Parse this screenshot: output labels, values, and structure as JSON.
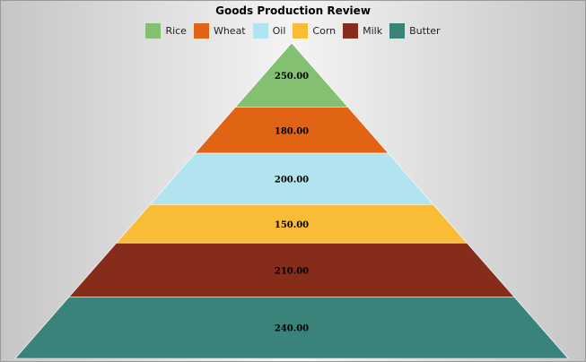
{
  "chart_data": {
    "type": "pyramid",
    "title": "Goods Production Review",
    "legend_position": "top",
    "series": [
      {
        "name": "Rice",
        "value": 250,
        "label": "250.00",
        "color": "#84c072"
      },
      {
        "name": "Wheat",
        "value": 180,
        "label": "180.00",
        "color": "#e06414"
      },
      {
        "name": "Oil",
        "value": 200,
        "label": "200.00",
        "color": "#b2e4f0"
      },
      {
        "name": "Corn",
        "value": 150,
        "label": "150.00",
        "color": "#f8bc36"
      },
      {
        "name": "Milk",
        "value": 210,
        "label": "210.00",
        "color": "#852c1a"
      },
      {
        "name": "Butter",
        "value": 240,
        "label": "240.00",
        "color": "#3a837b"
      }
    ]
  }
}
